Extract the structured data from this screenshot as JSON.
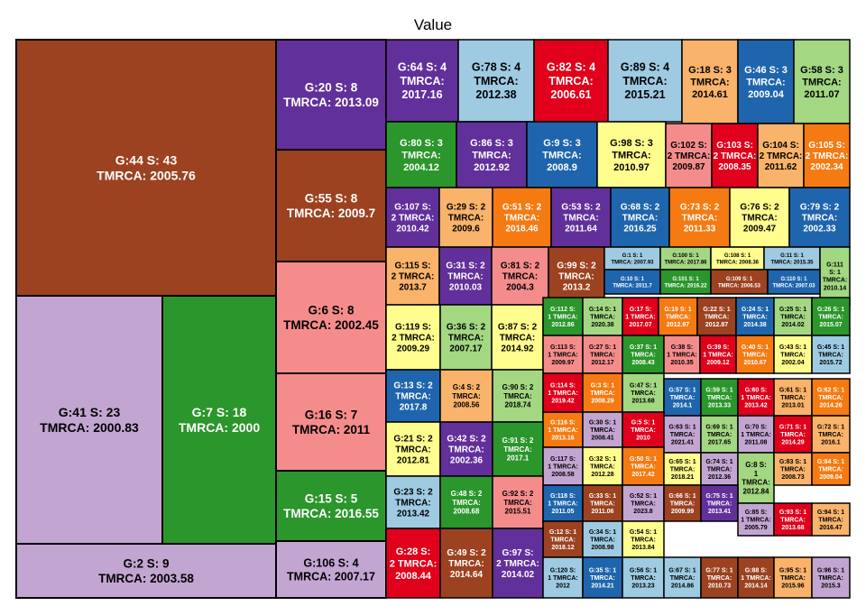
{
  "chart_data": {
    "type": "treemap",
    "title": "Value",
    "palette": {
      "brown": "#9c4220",
      "lilac": "#c3a5d2",
      "green": "#2b962b",
      "purple": "#62309a",
      "pink": "#f58c8c",
      "lightgreen": "#a3d782",
      "lightblue": "#9ecae2",
      "red": "#e0001b",
      "orange": "#f57a12",
      "peach": "#f9b36a",
      "yellow": "#fffd8e",
      "blue": "#1f65ad"
    },
    "tiles": [
      {
        "name": "G:44 S: 43",
        "label": "TMRCA: 2005.76",
        "color": "brown"
      },
      {
        "name": "G:41 S: 23",
        "label": "TMRCA: 2000.83",
        "color": "lilac"
      },
      {
        "name": "G:7 S: 18",
        "label": "TMRCA: 2000",
        "color": "green"
      },
      {
        "name": "G:2 S: 9",
        "label": "TMRCA: 2003.58",
        "color": "lilac"
      },
      {
        "name": "G:20 S: 8",
        "label": "TMRCA: 2013.09",
        "color": "purple"
      },
      {
        "name": "G:55 S: 8",
        "label": "TMRCA: 2009.7",
        "color": "brown"
      },
      {
        "name": "G:6 S: 8",
        "label": "TMRCA: 2002.45",
        "color": "pink"
      },
      {
        "name": "G:16 S: 7",
        "label": "TMRCA: 2011",
        "color": "pink"
      },
      {
        "name": "G:15 S: 5",
        "label": "TMRCA: 2016.55",
        "color": "green"
      },
      {
        "name": "G:106 S: 4",
        "label": "TMRCA: 2007.17",
        "color": "lilac"
      },
      {
        "name": "G:64 S: 4 TMRCA:",
        "label": "2017.16",
        "color": "purple"
      },
      {
        "name": "G:78 S: 4 TMRCA:",
        "label": "2012.38",
        "color": "lightblue"
      },
      {
        "name": "G:82 S: 4 TMRCA:",
        "label": "2006.61",
        "color": "red"
      },
      {
        "name": "G:89 S: 4 TMRCA:",
        "label": "2015.21",
        "color": "lightblue"
      },
      {
        "name": "G:18 S: 3 TMRCA:",
        "label": "2014.61",
        "color": "peach"
      },
      {
        "name": "G:46 S: 3 TMRCA:",
        "label": "2009.04",
        "color": "blue"
      },
      {
        "name": "G:58 S: 3 TMRCA:",
        "label": "2011.07",
        "color": "lightgreen"
      },
      {
        "name": "G:80 S: 3 TMRCA:",
        "label": "2004.12",
        "color": "green"
      },
      {
        "name": "G:86 S: 3 TMRCA:",
        "label": "2012.92",
        "color": "purple"
      },
      {
        "name": "G:9 S: 3 TMRCA:",
        "label": "2008.9",
        "color": "blue"
      },
      {
        "name": "G:98 S: 3 TMRCA:",
        "label": "2010.97",
        "color": "yellow"
      },
      {
        "name": "G:102 S: 2 TMRCA:",
        "label": "2009.87",
        "color": "pink"
      },
      {
        "name": "G:103 S: 2 TMRCA:",
        "label": "2008.35",
        "color": "red"
      },
      {
        "name": "G:104 S: 2 TMRCA:",
        "label": "2011.62",
        "color": "peach"
      },
      {
        "name": "G:105 S: 2 TMRCA:",
        "label": "2002.34",
        "color": "orange"
      },
      {
        "name": "G:107 S: 2 TMRCA:",
        "label": "2010.42",
        "color": "purple"
      },
      {
        "name": "G:29 S: 2 TMRCA:",
        "label": "2009.6",
        "color": "peach"
      },
      {
        "name": "G:51 S: 2 TMRCA:",
        "label": "2018.46",
        "color": "orange"
      },
      {
        "name": "G:53 S: 2 TMRCA:",
        "label": "2011.64",
        "color": "purple"
      },
      {
        "name": "G:68 S: 2 TMRCA:",
        "label": "2016.25",
        "color": "blue"
      },
      {
        "name": "G:73 S: 2 TMRCA:",
        "label": "2011.33",
        "color": "orange"
      },
      {
        "name": "G:76 S: 2 TMRCA:",
        "label": "2009.47",
        "color": "yellow"
      },
      {
        "name": "G:79 S: 2 TMRCA:",
        "label": "2002.33",
        "color": "blue"
      },
      {
        "name": "G:115 S: 2 TMRCA:",
        "label": "2013.7",
        "color": "peach"
      },
      {
        "name": "G:31 S: 2 TMRCA:",
        "label": "2010.03",
        "color": "purple"
      },
      {
        "name": "G:81 S: 2 TMRCA:",
        "label": "2004.3",
        "color": "pink"
      },
      {
        "name": "G:99 S: 2 TMRCA:",
        "label": "2013.2",
        "color": "brown"
      },
      {
        "name": "G:1 S: 1",
        "label": "TMRCA: 2007.93",
        "color": "lightblue"
      },
      {
        "name": "G:100 S: 1",
        "label": "TMRCA: 2017.86",
        "color": "lightgreen"
      },
      {
        "name": "G:108 S: 1",
        "label": "TMRCA: 2008.36",
        "color": "yellow"
      },
      {
        "name": "G:11 S: 1",
        "label": "TMRCA: 2015.35",
        "color": "lightblue"
      },
      {
        "name": "G:111 S: 1",
        "label": "TMRCA: 2010.14",
        "color": "lightgreen"
      },
      {
        "name": "G:10 S: 1",
        "label": "TMRCA: 2011.7",
        "color": "blue"
      },
      {
        "name": "G:101 S: 1",
        "label": "TMRCA: 2016.22",
        "color": "green"
      },
      {
        "name": "G:109 S: 1",
        "label": "TMRCA: 2006.53",
        "color": "brown"
      },
      {
        "name": "G:110 S: 1",
        "label": "TMRCA: 2007.03",
        "color": "blue"
      },
      {
        "name": "G:119 S: 2 TMRCA:",
        "label": "2009.29",
        "color": "yellow"
      },
      {
        "name": "G:36 S: 2 TMRCA:",
        "label": "2007.17",
        "color": "lightgreen"
      },
      {
        "name": "G:87 S: 2 TMRCA:",
        "label": "2014.92",
        "color": "yellow"
      },
      {
        "name": "G:112 S: 1 TMRCA:",
        "label": "2012.86",
        "color": "green"
      },
      {
        "name": "G:14 S: 1 TMRCA:",
        "label": "2020.38",
        "color": "lightgreen"
      },
      {
        "name": "G:17 S: 1 TMRCA:",
        "label": "2017.07",
        "color": "red"
      },
      {
        "name": "G:19 S: 1 TMRCA:",
        "label": "2012.97",
        "color": "orange"
      },
      {
        "name": "G:22 S: 1 TMRCA:",
        "label": "2012.87",
        "color": "brown"
      },
      {
        "name": "G:24 S: 1 TMRCA:",
        "label": "2014.38",
        "color": "blue"
      },
      {
        "name": "G:25 S: 1 TMRCA:",
        "label": "2014.02",
        "color": "lightgreen"
      },
      {
        "name": "G:26 S: 1 TMRCA:",
        "label": "2015.07",
        "color": "green"
      },
      {
        "name": "G:113 S: 1 TMRCA:",
        "label": "2009.97",
        "color": "pink"
      },
      {
        "name": "G:27 S: 1 TMRCA:",
        "label": "2012.17",
        "color": "pink"
      },
      {
        "name": "G:37 S: 1 TMRCA:",
        "label": "2008.43",
        "color": "green"
      },
      {
        "name": "G:38 S: 1 TMRCA:",
        "label": "2010.35",
        "color": "pink"
      },
      {
        "name": "G:39 S: 1 TMRCA:",
        "label": "2009.12",
        "color": "red"
      },
      {
        "name": "G:40 S: 1 TMRCA:",
        "label": "2010.67",
        "color": "orange"
      },
      {
        "name": "G:43 S: 1 TMRCA:",
        "label": "2002.04",
        "color": "yellow"
      },
      {
        "name": "G:45 S: 1 TMRCA:",
        "label": "2015.72",
        "color": "lightblue"
      },
      {
        "name": "G:13 S: 2 TMRCA:",
        "label": "2017.8",
        "color": "blue"
      },
      {
        "name": "G:4 S: 2 TMRCA:",
        "label": "2008.56",
        "color": "peach"
      },
      {
        "name": "G:90 S: 2 TMRCA:",
        "label": "2018.74",
        "color": "lightgreen"
      },
      {
        "name": "G:114 S: 1 TMRCA:",
        "label": "2019.42",
        "color": "red"
      },
      {
        "name": "G:3 S: 1 TMRCA:",
        "label": "2008.29",
        "color": "orange"
      },
      {
        "name": "G:47 S: 1 TMRCA:",
        "label": "2013.68",
        "color": "lightgreen"
      },
      {
        "name": "G:57 S: 1 TMRCA:",
        "label": "2014.1",
        "color": "blue"
      },
      {
        "name": "G:59 S: 1 TMRCA:",
        "label": "2013.33",
        "color": "green"
      },
      {
        "name": "G:60 S: 1 TMRCA:",
        "label": "2013.42",
        "color": "red"
      },
      {
        "name": "G:61 S: 1 TMRCA:",
        "label": "2013.01",
        "color": "peach"
      },
      {
        "name": "G:62 S: 1 TMRCA:",
        "label": "2014.26",
        "color": "orange"
      },
      {
        "name": "G:116 S: 1 TMRCA:",
        "label": "2013.16",
        "color": "orange"
      },
      {
        "name": "G:30 S: 1 TMRCA:",
        "label": "2008.41",
        "color": "lilac"
      },
      {
        "name": "G:5 S: 1 TMRCA:",
        "label": "2010",
        "color": "red"
      },
      {
        "name": "G:63 S: 1 TMRCA:",
        "label": "2021.41",
        "color": "lilac"
      },
      {
        "name": "G:69 S: 1 TMRCA:",
        "label": "2017.65",
        "color": "lightgreen"
      },
      {
        "name": "G:70 S: 1 TMRCA:",
        "label": "2011.08",
        "color": "lilac"
      },
      {
        "name": "G:71 S: 1 TMRCA:",
        "label": "2014.29",
        "color": "red"
      },
      {
        "name": "G:72 S: 1 TMRCA:",
        "label": "2016.1",
        "color": "peach"
      },
      {
        "name": "G:21 S: 2 TMRCA:",
        "label": "2012.81",
        "color": "yellow"
      },
      {
        "name": "G:42 S: 2 TMRCA:",
        "label": "2002.36",
        "color": "purple"
      },
      {
        "name": "G:91 S: 2 TMRCA:",
        "label": "2017.1",
        "color": "green"
      },
      {
        "name": "G:117 S: 1 TMRCA:",
        "label": "2008.58",
        "color": "lilac"
      },
      {
        "name": "G:32 S: 1 TMRCA:",
        "label": "2012.28",
        "color": "yellow"
      },
      {
        "name": "G:50 S: 1 TMRCA:",
        "label": "2017.42",
        "color": "orange"
      },
      {
        "name": "G:65 S: 1 TMRCA:",
        "label": "2018.21",
        "color": "yellow"
      },
      {
        "name": "G:74 S: 1 TMRCA:",
        "label": "2012.36",
        "color": "lilac"
      },
      {
        "name": "G:8 S: 1 TMRCA:",
        "label": "2012.84",
        "color": "lightgreen"
      },
      {
        "name": "G:83 S: 1 TMRCA:",
        "label": "2008.73",
        "color": "peach"
      },
      {
        "name": "G:84 S: 1 TMRCA:",
        "label": "2009.04",
        "color": "orange"
      },
      {
        "name": "G:23 S: 2 TMRCA:",
        "label": "2013.42",
        "color": "lightblue"
      },
      {
        "name": "G:48 S: 2 TMRCA:",
        "label": "2008.68",
        "color": "green"
      },
      {
        "name": "G:92 S: 2 TMRCA:",
        "label": "2015.51",
        "color": "pink"
      },
      {
        "name": "G:118 S: 1 TMRCA:",
        "label": "2011.05",
        "color": "blue"
      },
      {
        "name": "G:33 S: 1 TMRCA:",
        "label": "2011.06",
        "color": "brown"
      },
      {
        "name": "G:52 S: 1 TMRCA:",
        "label": "2023.8",
        "color": "lilac"
      },
      {
        "name": "G:66 S: 1 TMRCA:",
        "label": "2009.99",
        "color": "brown"
      },
      {
        "name": "G:75 S: 1 TMRCA:",
        "label": "2013.41",
        "color": "purple"
      },
      {
        "name": "G:85 S: 1 TMRCA:",
        "label": "2005.79",
        "color": "lilac"
      },
      {
        "name": "G:93 S: 1 TMRCA:",
        "label": "2013.68",
        "color": "red"
      },
      {
        "name": "G:94 S: 1 TMRCA:",
        "label": "2016.47",
        "color": "peach"
      },
      {
        "name": "G:12 S: 1 TMRCA:",
        "label": "2018.12",
        "color": "brown"
      },
      {
        "name": "G:34 S: 1 TMRCA:",
        "label": "2008.98",
        "color": "lightblue"
      },
      {
        "name": "G:54 S: 1 TMRCA:",
        "label": "2013.84",
        "color": "yellow"
      },
      {
        "name": "G:28 S: 2 TMRCA:",
        "label": "2008.44",
        "color": "red"
      },
      {
        "name": "G:49 S: 2 TMRCA:",
        "label": "2014.64",
        "color": "brown"
      },
      {
        "name": "G:97 S: 2 TMRCA:",
        "label": "2014.02",
        "color": "purple"
      },
      {
        "name": "G:120 S: 1 TMRCA:",
        "label": "2012",
        "color": "lightblue"
      },
      {
        "name": "G:35 S: 1 TMRCA:",
        "label": "2014.21",
        "color": "blue"
      },
      {
        "name": "G:56 S: 1 TMRCA:",
        "label": "2013.23",
        "color": "lightblue"
      },
      {
        "name": "G:67 S: 1 TMRCA:",
        "label": "2014.86",
        "color": "lightblue"
      },
      {
        "name": "G:77 S: 1 TMRCA:",
        "label": "2010.73",
        "color": "brown"
      },
      {
        "name": "G:88 S: 1 TMRCA:",
        "label": "2014.14",
        "color": "brown"
      },
      {
        "name": "G:95 S: 1 TMRCA:",
        "label": "2015.96",
        "color": "peach"
      },
      {
        "name": "G:96 S: 1 TMRCA:",
        "label": "2015.3",
        "color": "lilac"
      }
    ]
  }
}
